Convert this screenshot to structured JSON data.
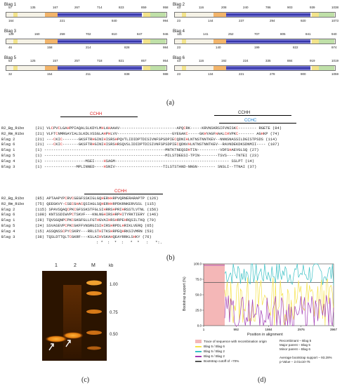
{
  "panel_a": {
    "caption": "(a)",
    "genes": [
      {
        "label": "Blag 1",
        "top": [
          "57",
          "135",
          "167",
          "267",
          "714",
          "823",
          "859",
          "958"
        ],
        "bot": [
          "164",
          "221",
          "840",
          "994"
        ]
      },
      {
        "label": "Blag 2",
        "top": [
          "43",
          "116",
          "208",
          "240",
          "786",
          "903",
          "939",
          "1038"
        ],
        "bot": [
          "23",
          "144",
          "237",
          "294",
          "920",
          "1073"
        ]
      },
      {
        "label": "Blag 3",
        "top": [
          "129",
          "160",
          "259",
          "702",
          "810",
          "847",
          "946"
        ],
        "bot": [
          "46",
          "158",
          "214",
          "828",
          "984"
        ]
      },
      {
        "label": "Blag 4",
        "top": [
          "111",
          "141",
          "252",
          "707",
          "805",
          "841",
          "940"
        ],
        "bot": [
          "23",
          "140",
          "199",
          "822",
          "974"
        ]
      },
      {
        "label": "Blag 5",
        "top": [
          "53",
          "125",
          "157",
          "257",
          "718",
          "821",
          "857",
          "954"
        ],
        "bot": [
          "32",
          "154",
          "211",
          "838",
          "988"
        ]
      },
      {
        "label": "Blag 6",
        "top": [
          "43",
          "116",
          "192",
          "224",
          "335",
          "884",
          "919",
          "1019"
        ],
        "bot": [
          "23",
          "134",
          "221",
          "278",
          "900",
          "1059"
        ]
      }
    ]
  },
  "panel_b": {
    "caption": "(b)",
    "motifs": {
      "cchh_red": "CCHH",
      "cchh_black": "CCHH",
      "cchc_blue": "CCHC",
      "cchh_red2": "CCHH"
    },
    "block1": [
      {
        "name": "R2_Bg_Ribo",
        "seq": "(21) VLCPVCLGAHPPIAQALSLKDYLMHLAHAAAV-------------------------APQCRK-----KRVNSKRSIFVNISKC-------- RGETE (84)"
      },
      {
        "name": "R2_Rm_Ribo",
        "seq": "(21) VLFTCNMRGAYIALSLKDLVSSGLAHPHLVV------------------------GYEGAKC-----GKHYAGFHAALCHVPKC------- AGHKP (74)"
      },
      {
        "name": "Blag 2",
        "seq": "(21) ---CKIC-------GKSFTRHGINIHISRSHPQVTLIDIDPTDISIVNFSPSDPIECQDNIHLNTNSTNNTKEV--NNNSNASSILDGISTPSDS (114)"
      },
      {
        "name": "Blag 6",
        "seq": "(21) ---CKIC-------GKSFTRHGINIHISRSHRSQVSLIDIDPTDISIVNFSPSDPIECQDNVHLNTNSTNNTKEV--RAVNDEKDKSDNMII---- (107)"
      },
      {
        "name": "Blag 1",
        "seq": "(1) -----------------------------------------------------MNTKTNEQSDHTIN----------VDFSHAEVGLSQ (27)"
      },
      {
        "name": "Blag 5",
        "seq": "(1) -----------------------------------------------------MILSTDEESI-TPIN--------TSVS----TNTEI (23)"
      },
      {
        "name": "Blag 4",
        "seq": "(1) ------------------MSEI----HSAGM-------------------------------------------------- SSLPT (14)"
      },
      {
        "name": "Blag 3",
        "seq": "(1) --------------MPLINNED----HSNIV---------------------TILSTSTAND-NNGN-------- SNSLI--TTNAI (37)"
      }
    ],
    "block2": [
      {
        "name": "R2_Bg_Ribo",
        "seq": "(85) APTAAPYPCRVCGEGFSSKIGLGQHERHHRPVQRNERARAPTP (126)"
      },
      {
        "name": "R2_Rm_Ribo",
        "seq": "(75) QEEGKVY-CSECGHACQSIAGLSQHERHHRPDKRNKERVSSL (115)"
      },
      {
        "name": "Blag 2",
        "seq": "(115) SPAVSQAQCPKCGFSSKSTFGLSIHRRSHPRIHRSSTLVTNL (156)"
      },
      {
        "name": "Blag 6",
        "seq": "(108) KNTSSDIWVPCTSKVF---KNLNGHIRSHRPHITYRKTIERY (146)"
      },
      {
        "name": "Blag 1",
        "seq": "(28) TQVSGQNPCPKCGKGFGLLFGTHGVAIHRSHRPEHRQSILTKQ (70)"
      },
      {
        "name": "Blag 5",
        "seq": "(24) SSVASEVPCPKCGKFFVNSRGISIHIRSHRPDLHRIKLVERQ (65)"
      },
      {
        "name": "Blag 4",
        "seq": "(15) ASSQNSSCPYCSKRY---RRLSTHITKSHRPEQHRKSIVMRN (53)"
      },
      {
        "name": "Blag 3",
        "seq": "(38) TQSLDTTQLTCGKRF---KSLAIHVSKAHQEAYRRKLSHKY (76)"
      }
    ],
    "consensus": ": *  :  *  :   *  *   :   *:."
  },
  "panel_c": {
    "caption": "(c)",
    "lanes": [
      "1",
      "2",
      "M"
    ],
    "unit": "kb",
    "markers": [
      "1.00",
      "0.75",
      "0.50"
    ]
  },
  "panel_d": {
    "caption": "(d)",
    "ylabel": "Bootstrap support (%)",
    "xlabel": "Position in alignment",
    "yticks": [
      "100.0",
      "75.0",
      "50.0",
      "25.0",
      "0.0"
    ],
    "xticks": [
      "1",
      "992",
      "1984",
      "2976",
      "3967"
    ],
    "legend": [
      {
        "label": "Trace of sequence with recombination origin",
        "color": "#f4b7b7"
      },
      {
        "label": "Blag 5 / Blag 6",
        "color": "#f6e24a"
      },
      {
        "label": "Blag 5 / Blag 2",
        "color": "#38c0c4"
      },
      {
        "label": "Blag 6 / Blag 2",
        "color": "#a23bb5"
      },
      {
        "label": "Bootstrap cutoff of ~70%",
        "color": "#555555"
      }
    ],
    "info": [
      "Recombinant – Blag 5",
      "Major parent – Blag 5",
      "Minor parent – Blag 6",
      "",
      "Average bootstrap support – 93.28%",
      "p-Value – 2.01x10-75"
    ],
    "colors": {
      "yellow": "#f6e24a",
      "cyan": "#38c0c4",
      "purple": "#a23bb5",
      "cutoff": "#555555",
      "region": "#f4b7b7"
    }
  }
}
